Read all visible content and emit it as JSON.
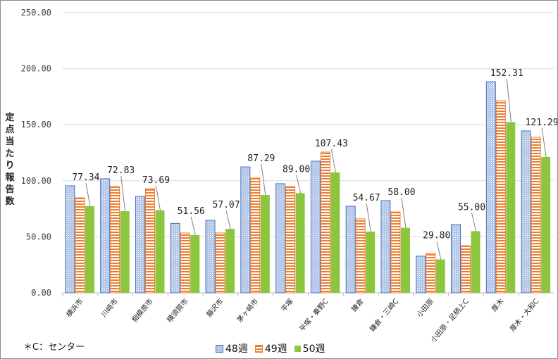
{
  "chart_data": {
    "type": "bar",
    "ylabel": "定点当たり報告数",
    "ylim": [
      0,
      250
    ],
    "yticks": [
      "0.00",
      "50.00",
      "100.00",
      "150.00",
      "200.00",
      "250.00"
    ],
    "grid": true,
    "legend_position": "bottom",
    "categories": [
      "横浜市",
      "川崎市",
      "相模原市",
      "横須賀市",
      "藤沢市",
      "茅ヶ崎市",
      "平塚",
      "平塚・秦野C",
      "鎌倉",
      "鎌倉・三崎C",
      "小田原",
      "小田原・足柄上C",
      "厚木",
      "厚木・大和C"
    ],
    "series": [
      {
        "name": "48週",
        "color": "#4472c4",
        "values": [
          95.5,
          101.8,
          86.0,
          62.0,
          64.7,
          112.4,
          97.4,
          117.5,
          77.3,
          82.3,
          32.7,
          61.0,
          188.4,
          144.5
        ]
      },
      {
        "name": "49週",
        "color": "#ed7d31",
        "values": [
          84.8,
          94.8,
          93.0,
          53.4,
          53.4,
          102.4,
          94.8,
          125.6,
          66.0,
          72.2,
          35.2,
          42.0,
          171.5,
          138.8
        ]
      },
      {
        "name": "50週",
        "color": "#8cc63f",
        "values": [
          77.34,
          72.83,
          73.69,
          51.56,
          57.07,
          87.29,
          89.0,
          107.43,
          54.67,
          58.0,
          29.8,
          55.0,
          152.31,
          121.29
        ]
      }
    ],
    "data_labels": [
      "77.34",
      "72.83",
      "73.69",
      "51.56",
      "57.07",
      "87.29",
      "89.00",
      "107.43",
      "54.67",
      "58.00",
      "29.80",
      "55.00",
      "152.31",
      "121.29"
    ],
    "note": "＊C：センター"
  }
}
